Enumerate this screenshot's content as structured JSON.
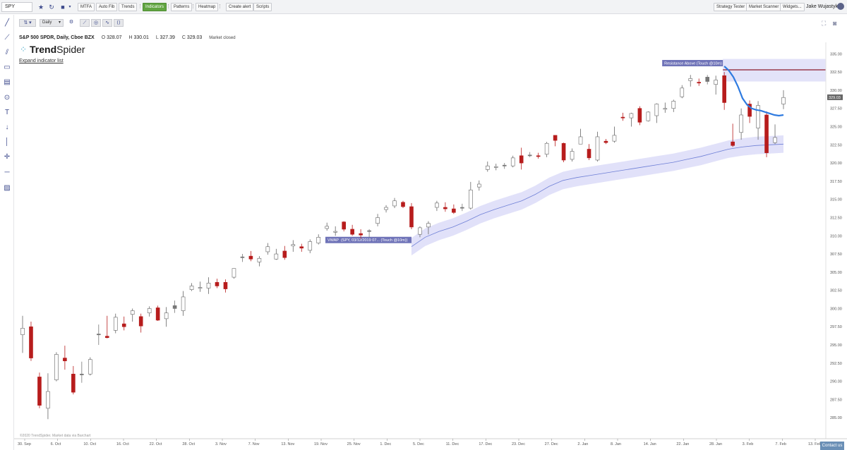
{
  "toolbar": {
    "symbol": "SPY",
    "buttons": [
      "MTFA",
      "Auto Fib",
      "Trends",
      "Indicators",
      "Patterns",
      "Heatmap",
      "Create alert",
      "Scripts"
    ],
    "right_buttons": [
      "Strategy Tester",
      "Market Scanner",
      "Widgets..."
    ],
    "user": "Jake Wujastyk"
  },
  "subtoolbar": {
    "timeframe": "Daily"
  },
  "info": {
    "title": "S&P 500 SPDR, Daily, Cboe BZX",
    "open_label": "O",
    "open": "328.07",
    "high_label": "H",
    "high": "330.01",
    "low_label": "L",
    "low": "327.39",
    "close_label": "C",
    "close": "329.03",
    "status": "Market closed"
  },
  "logo": {
    "brand_a": "Trend",
    "brand_b": "Spider"
  },
  "expand_label": "Expand indicator list",
  "copyright": "©2020 TrendSpider. Market data via Barchart",
  "contact_label": "Contact us",
  "colors": {
    "up_fill": "#ffffff",
    "down_fill": "#b71c1c",
    "doji_fill": "#777777",
    "ma": "#2f7be0",
    "vwap": "#6e7fd6",
    "band": "#dcdcf8",
    "resistance": "#8b1a2b"
  },
  "chart_data": {
    "type": "candlestick",
    "ylim": [
      282.5,
      336
    ],
    "y_ticks": [
      "335.00",
      "332.50",
      "330.00",
      "327.50",
      "325.00",
      "322.50",
      "320.00",
      "317.50",
      "315.00",
      "312.50",
      "310.00",
      "307.50",
      "305.00",
      "302.50",
      "300.00",
      "297.50",
      "295.00",
      "292.50",
      "290.00",
      "287.50",
      "285.00"
    ],
    "x_labels": [
      "30. Sep",
      "6. Oct",
      "10. Oct",
      "16. Oct",
      "22. Oct",
      "28. Oct",
      "3. Nov",
      "7. Nov",
      "13. Nov",
      "19. Nov",
      "25. Nov",
      "1. Dec",
      "5. Dec",
      "11. Dec",
      "17. Dec",
      "23. Dec",
      "27. Dec",
      "2. Jan",
      "8. Jan",
      "14. Jan",
      "22. Jan",
      "28. Jan",
      "3. Feb",
      "7. Feb",
      "13. Feb"
    ],
    "last_price_label": "329.03",
    "resistance": {
      "label": "Resistance Above (Touch @10m)",
      "value": 332.8
    },
    "vwap_label": {
      "name": "VWAP",
      "text": "(SPY, 03/12/2019 07... (Touch @10m))"
    },
    "candles": [
      {
        "o": 296.4,
        "h": 299.0,
        "l": 293.9,
        "c": 297.3,
        "s": "up"
      },
      {
        "o": 297.5,
        "h": 298.2,
        "l": 292.8,
        "c": 293.2,
        "s": "down"
      },
      {
        "o": 290.6,
        "h": 291.2,
        "l": 286.3,
        "c": 286.7,
        "s": "down"
      },
      {
        "o": 286.3,
        "h": 291.1,
        "l": 284.8,
        "c": 288.6,
        "s": "up"
      },
      {
        "o": 290.2,
        "h": 294.0,
        "l": 290.0,
        "c": 293.7,
        "s": "up"
      },
      {
        "o": 293.2,
        "h": 294.9,
        "l": 291.6,
        "c": 292.8,
        "s": "down"
      },
      {
        "o": 291.0,
        "h": 292.1,
        "l": 288.2,
        "c": 288.5,
        "s": "down"
      },
      {
        "o": 291.0,
        "h": 292.7,
        "l": 289.8,
        "c": 291.0,
        "s": "doji"
      },
      {
        "o": 291.0,
        "h": 293.3,
        "l": 290.8,
        "c": 293.0,
        "s": "up"
      },
      {
        "o": 296.5,
        "h": 297.8,
        "l": 295.0,
        "c": 296.5,
        "s": "doji"
      },
      {
        "o": 296.0,
        "h": 299.0,
        "l": 295.9,
        "c": 296.2,
        "s": "down"
      },
      {
        "o": 297.0,
        "h": 299.3,
        "l": 296.6,
        "c": 298.8,
        "s": "up"
      },
      {
        "o": 297.9,
        "h": 298.9,
        "l": 297.0,
        "c": 297.5,
        "s": "down"
      },
      {
        "o": 299.2,
        "h": 300.0,
        "l": 298.2,
        "c": 299.7,
        "s": "up"
      },
      {
        "o": 298.9,
        "h": 299.3,
        "l": 296.7,
        "c": 297.6,
        "s": "down"
      },
      {
        "o": 299.4,
        "h": 300.3,
        "l": 298.9,
        "c": 300.0,
        "s": "up"
      },
      {
        "o": 300.1,
        "h": 300.4,
        "l": 298.3,
        "c": 298.4,
        "s": "down"
      },
      {
        "o": 298.6,
        "h": 300.2,
        "l": 297.5,
        "c": 299.4,
        "s": "up"
      },
      {
        "o": 300.0,
        "h": 301.1,
        "l": 299.4,
        "c": 300.4,
        "s": "doji"
      },
      {
        "o": 299.7,
        "h": 302.4,
        "l": 299.0,
        "c": 301.6,
        "s": "up"
      },
      {
        "o": 302.6,
        "h": 303.5,
        "l": 302.4,
        "c": 303.1,
        "s": "up"
      },
      {
        "o": 302.8,
        "h": 303.7,
        "l": 302.3,
        "c": 302.9,
        "s": "up"
      },
      {
        "o": 303.5,
        "h": 304.3,
        "l": 302.0,
        "c": 302.8,
        "s": "up"
      },
      {
        "o": 303.6,
        "h": 304.1,
        "l": 302.8,
        "c": 303.1,
        "s": "down"
      },
      {
        "o": 303.6,
        "h": 304.0,
        "l": 302.2,
        "c": 302.7,
        "s": "down"
      },
      {
        "o": 304.3,
        "h": 305.4,
        "l": 304.1,
        "c": 305.5,
        "s": "up"
      },
      {
        "o": 307.0,
        "h": 307.5,
        "l": 306.4,
        "c": 307.1,
        "s": "doji"
      },
      {
        "o": 307.2,
        "h": 307.9,
        "l": 306.5,
        "c": 306.8,
        "s": "down"
      },
      {
        "o": 306.4,
        "h": 307.2,
        "l": 305.8,
        "c": 306.9,
        "s": "up"
      },
      {
        "o": 307.8,
        "h": 309.0,
        "l": 307.4,
        "c": 308.5,
        "s": "up"
      },
      {
        "o": 307.5,
        "h": 308.2,
        "l": 306.7,
        "c": 306.8,
        "s": "up"
      },
      {
        "o": 307.9,
        "h": 308.6,
        "l": 306.7,
        "c": 307.0,
        "s": "down"
      },
      {
        "o": 308.6,
        "h": 309.4,
        "l": 307.8,
        "c": 308.8,
        "s": "up"
      },
      {
        "o": 308.3,
        "h": 308.9,
        "l": 307.8,
        "c": 308.5,
        "s": "down"
      },
      {
        "o": 308.0,
        "h": 309.5,
        "l": 307.6,
        "c": 309.2,
        "s": "up"
      },
      {
        "o": 309.0,
        "h": 310.2,
        "l": 308.8,
        "c": 309.8,
        "s": "up"
      },
      {
        "o": 311.0,
        "h": 311.8,
        "l": 310.7,
        "c": 311.3,
        "s": "up"
      },
      {
        "o": 310.5,
        "h": 311.3,
        "l": 310.0,
        "c": 310.6,
        "s": "up"
      },
      {
        "o": 311.9,
        "h": 312.0,
        "l": 310.6,
        "c": 310.9,
        "s": "down"
      },
      {
        "o": 310.9,
        "h": 311.5,
        "l": 310.0,
        "c": 310.2,
        "s": "down"
      },
      {
        "o": 310.1,
        "h": 310.9,
        "l": 309.6,
        "c": 310.3,
        "s": "down"
      },
      {
        "o": 310.7,
        "h": 310.9,
        "l": 309.8,
        "c": 310.6,
        "s": "doji"
      },
      {
        "o": 311.7,
        "h": 313.0,
        "l": 311.3,
        "c": 312.5,
        "s": "up"
      },
      {
        "o": 313.6,
        "h": 314.2,
        "l": 313.2,
        "c": 313.9,
        "s": "up"
      },
      {
        "o": 314.1,
        "h": 315.2,
        "l": 313.8,
        "c": 314.8,
        "s": "up"
      },
      {
        "o": 314.6,
        "h": 314.8,
        "l": 313.8,
        "c": 314.0,
        "s": "down"
      },
      {
        "o": 314.0,
        "h": 314.5,
        "l": 310.9,
        "c": 311.2,
        "s": "down"
      },
      {
        "o": 310.2,
        "h": 311.3,
        "l": 309.8,
        "c": 311.1,
        "s": "up"
      },
      {
        "o": 311.2,
        "h": 312.0,
        "l": 310.2,
        "c": 311.7,
        "s": "up"
      },
      {
        "o": 313.9,
        "h": 314.8,
        "l": 313.4,
        "c": 314.5,
        "s": "up"
      },
      {
        "o": 313.9,
        "h": 314.6,
        "l": 313.3,
        "c": 313.7,
        "s": "down"
      },
      {
        "o": 313.7,
        "h": 314.3,
        "l": 313.0,
        "c": 313.2,
        "s": "down"
      },
      {
        "o": 313.8,
        "h": 314.4,
        "l": 313.4,
        "c": 313.9,
        "s": "doji"
      },
      {
        "o": 313.8,
        "h": 317.4,
        "l": 313.6,
        "c": 316.3,
        "s": "up"
      },
      {
        "o": 316.7,
        "h": 317.6,
        "l": 316.2,
        "c": 317.1,
        "s": "up"
      },
      {
        "o": 319.1,
        "h": 320.2,
        "l": 318.8,
        "c": 319.6,
        "s": "up"
      },
      {
        "o": 319.4,
        "h": 319.9,
        "l": 319.0,
        "c": 319.5,
        "s": "up"
      },
      {
        "o": 319.7,
        "h": 320.0,
        "l": 319.2,
        "c": 319.7,
        "s": "doji"
      },
      {
        "o": 319.6,
        "h": 321.0,
        "l": 319.4,
        "c": 320.7,
        "s": "up"
      },
      {
        "o": 321.0,
        "h": 322.1,
        "l": 319.1,
        "c": 320.0,
        "s": "down"
      },
      {
        "o": 321.1,
        "h": 321.5,
        "l": 320.8,
        "c": 321.1,
        "s": "doji"
      },
      {
        "o": 320.9,
        "h": 321.4,
        "l": 320.6,
        "c": 321.0,
        "s": "down"
      },
      {
        "o": 321.2,
        "h": 322.9,
        "l": 320.8,
        "c": 322.7,
        "s": "up"
      },
      {
        "o": 323.8,
        "h": 323.8,
        "l": 322.3,
        "c": 323.1,
        "s": "down"
      },
      {
        "o": 322.7,
        "h": 322.8,
        "l": 320.1,
        "c": 320.4,
        "s": "down"
      },
      {
        "o": 320.5,
        "h": 322.0,
        "l": 320.2,
        "c": 321.6,
        "s": "up"
      },
      {
        "o": 322.6,
        "h": 324.7,
        "l": 322.6,
        "c": 323.6,
        "s": "up"
      },
      {
        "o": 321.9,
        "h": 322.6,
        "l": 320.4,
        "c": 320.7,
        "s": "down"
      },
      {
        "o": 320.4,
        "h": 324.3,
        "l": 320.2,
        "c": 323.6,
        "s": "up"
      },
      {
        "o": 323.0,
        "h": 323.3,
        "l": 322.6,
        "c": 322.8,
        "s": "down"
      },
      {
        "o": 323.0,
        "h": 325.0,
        "l": 322.8,
        "c": 323.8,
        "s": "up"
      },
      {
        "o": 326.3,
        "h": 326.9,
        "l": 325.8,
        "c": 326.2,
        "s": "down"
      },
      {
        "o": 326.2,
        "h": 326.9,
        "l": 325.0,
        "c": 326.8,
        "s": "up"
      },
      {
        "o": 327.5,
        "h": 327.8,
        "l": 325.2,
        "c": 325.6,
        "s": "down"
      },
      {
        "o": 325.8,
        "h": 327.1,
        "l": 325.7,
        "c": 327.0,
        "s": "up"
      },
      {
        "o": 326.5,
        "h": 328.2,
        "l": 325.5,
        "c": 328.1,
        "s": "up"
      },
      {
        "o": 327.4,
        "h": 328.3,
        "l": 326.9,
        "c": 327.5,
        "s": "up"
      },
      {
        "o": 327.5,
        "h": 328.7,
        "l": 327.0,
        "c": 328.5,
        "s": "up"
      },
      {
        "o": 329.1,
        "h": 330.7,
        "l": 328.9,
        "c": 330.3,
        "s": "up"
      },
      {
        "o": 331.3,
        "h": 332.1,
        "l": 330.5,
        "c": 331.6,
        "s": "up"
      },
      {
        "o": 331.1,
        "h": 331.6,
        "l": 330.6,
        "c": 331.0,
        "s": "down"
      },
      {
        "o": 331.2,
        "h": 332.1,
        "l": 330.8,
        "c": 331.8,
        "s": "doji"
      },
      {
        "o": 331.4,
        "h": 332.0,
        "l": 329.4,
        "c": 330.8,
        "s": "up"
      },
      {
        "o": 332.0,
        "h": 332.5,
        "l": 327.3,
        "c": 328.3,
        "s": "down"
      },
      {
        "o": 322.4,
        "h": 325.4,
        "l": 322.2,
        "c": 322.9,
        "s": "down"
      },
      {
        "o": 324.2,
        "h": 327.5,
        "l": 323.2,
        "c": 326.6,
        "s": "up"
      },
      {
        "o": 328.1,
        "h": 328.6,
        "l": 325.5,
        "c": 326.4,
        "s": "down"
      },
      {
        "o": 324.8,
        "h": 328.5,
        "l": 323.2,
        "c": 327.9,
        "s": "up"
      },
      {
        "o": 326.6,
        "h": 327.1,
        "l": 320.8,
        "c": 321.4,
        "s": "down"
      },
      {
        "o": 322.8,
        "h": 325.3,
        "l": 322.6,
        "c": 323.5,
        "s": "up"
      },
      {
        "o": 328.1,
        "h": 330.0,
        "l": 327.4,
        "c": 329.0,
        "s": "up"
      }
    ],
    "ma_series": [
      333.3,
      332.7,
      331.8,
      330.5,
      328.9,
      328.0,
      327.5,
      327.3,
      327.2,
      327.0,
      326.8,
      326.6,
      326.5,
      326.6
    ],
    "vwap_series": [
      308.5,
      309.8,
      310.6,
      311.2,
      312.0,
      312.9,
      313.6,
      314.2,
      314.8,
      315.7,
      316.8,
      317.6,
      318.0,
      318.3,
      318.6,
      318.9,
      319.2,
      319.5,
      319.8,
      320.1,
      320.5,
      320.9,
      321.4,
      321.9,
      322.2,
      322.4,
      322.5,
      322.6
    ]
  }
}
